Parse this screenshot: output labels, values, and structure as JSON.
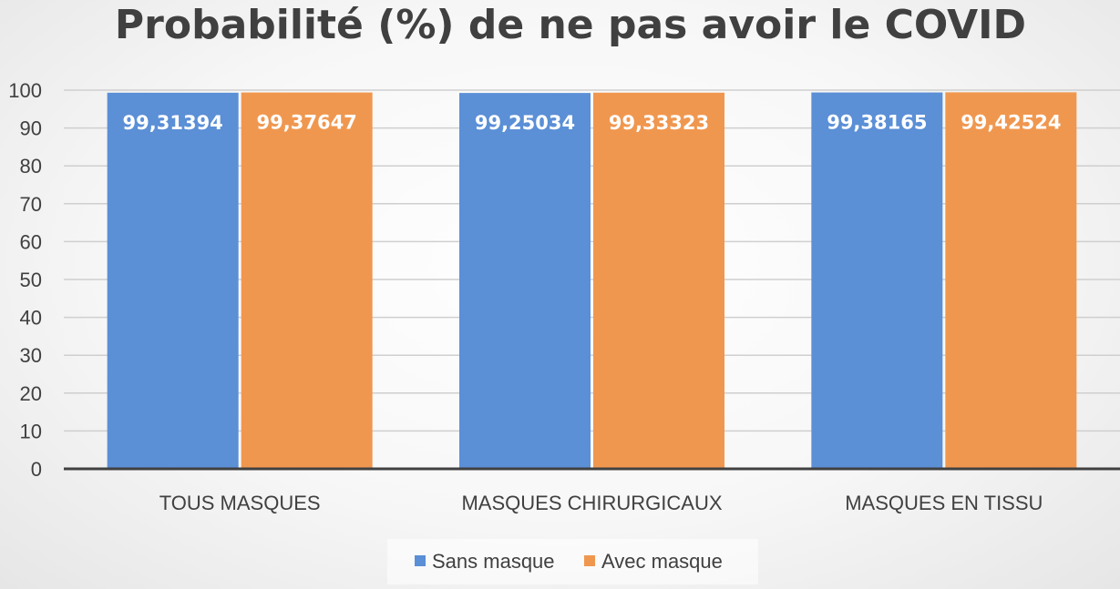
{
  "chart_data": {
    "type": "bar",
    "title": "Probabilité (%) de ne pas avoir le COVID",
    "categories": [
      "TOUS MASQUES",
      "MASQUES CHIRURGICAUX",
      "MASQUES EN TISSU"
    ],
    "series": [
      {
        "name": "Sans masque",
        "color": "#5b8fd6",
        "values": [
          99.31394,
          99.25034,
          99.38165
        ],
        "labels": [
          "99,31394",
          "99,25034",
          "99,38165"
        ]
      },
      {
        "name": "Avec masque",
        "color": "#f0974f",
        "values": [
          99.37647,
          99.33323,
          99.42524
        ],
        "labels": [
          "99,37647",
          "99,33323",
          "99,42524"
        ]
      }
    ],
    "ylim": [
      0,
      100
    ],
    "yticks": [
      "0",
      "10",
      "20",
      "30",
      "40",
      "50",
      "60",
      "70",
      "80",
      "90",
      "100"
    ],
    "grid": true,
    "legend_position": "bottom"
  }
}
